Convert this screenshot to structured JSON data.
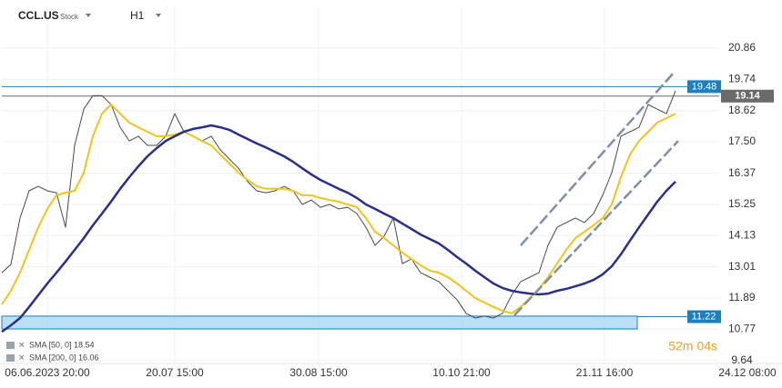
{
  "header": {
    "symbol": "CCL.US",
    "kind": "Stock",
    "interval": "H1"
  },
  "chart_data": {
    "type": "line",
    "x": [
      0,
      1,
      2,
      3,
      4,
      5,
      6,
      7,
      8,
      9,
      10,
      11,
      12,
      13,
      14,
      15,
      16,
      17,
      18,
      19,
      20,
      21,
      22,
      23,
      24,
      25,
      26,
      27,
      28,
      29,
      30,
      31,
      32,
      33,
      34,
      35,
      36,
      37,
      38,
      39,
      40,
      41,
      42,
      43,
      44,
      45,
      46,
      47,
      48,
      49,
      50,
      51,
      52,
      53,
      54,
      55,
      56,
      57,
      58,
      59,
      60,
      61,
      62,
      63,
      64,
      65,
      66,
      67,
      68,
      69,
      70,
      71,
      72,
      73,
      74
    ],
    "xlim": [
      0,
      84
    ],
    "xticks": [
      {
        "value": 5.0,
        "label": "06.06.2023 20:00"
      },
      {
        "value": 19.0,
        "label": "20.07 15:00"
      },
      {
        "value": 34.8,
        "label": "30.08 15:00"
      },
      {
        "value": 50.5,
        "label": "10.10 21:00"
      },
      {
        "value": 66.2,
        "label": "21.11 16:00"
      },
      {
        "value": 81.9,
        "label": "24.12 08:00"
      }
    ],
    "ylim": [
      9.54,
      22.33
    ],
    "yticks": [
      {
        "value": 20.86,
        "label": "20.86"
      },
      {
        "value": 19.74,
        "label": "19.74"
      },
      {
        "value": 18.62,
        "label": "18.62"
      },
      {
        "value": 17.5,
        "label": "17.50"
      },
      {
        "value": 16.37,
        "label": "16.37"
      },
      {
        "value": 15.25,
        "label": "15.25"
      },
      {
        "value": 14.13,
        "label": "14.13"
      },
      {
        "value": 13.01,
        "label": "13.01"
      },
      {
        "value": 11.89,
        "label": "11.89"
      },
      {
        "value": 10.77,
        "label": "10.77"
      },
      {
        "value": 9.64,
        "label": "9.64"
      }
    ],
    "grid": true,
    "series": [
      {
        "color": "#4a4a4a",
        "values": [
          12.8,
          13.1,
          14.76,
          15.74,
          15.9,
          15.74,
          15.67,
          14.43,
          17.37,
          18.67,
          19.16,
          19.16,
          18.84,
          18.02,
          17.53,
          17.7,
          17.37,
          17.37,
          17.7,
          18.51,
          17.86,
          17.7,
          17.53,
          17.7,
          17.21,
          16.88,
          16.55,
          16.07,
          15.74,
          15.67,
          15.74,
          15.9,
          15.74,
          15.25,
          15.41,
          15.15,
          15.25,
          15.09,
          15.15,
          14.92,
          14.43,
          13.78,
          14.11,
          14.76,
          13.13,
          13.29,
          12.8,
          12.64,
          12.48,
          12.15,
          11.83,
          11.34,
          11.17,
          11.24,
          11.17,
          11.34,
          11.99,
          12.48,
          12.64,
          12.8,
          13.78,
          14.43,
          14.6,
          14.76,
          14.6,
          14.92,
          15.58,
          16.39,
          17.7,
          17.86,
          18.02,
          18.84,
          18.67,
          18.51,
          19.33
        ]
      },
      {
        "name": "SMA [50, 0] 18.54",
        "color": "#f0c419",
        "values": [
          11.66,
          12.15,
          12.8,
          13.62,
          14.43,
          15.09,
          15.58,
          15.67,
          15.74,
          16.39,
          17.7,
          18.51,
          18.84,
          18.51,
          18.19,
          18.02,
          17.86,
          17.7,
          17.7,
          17.76,
          17.86,
          17.7,
          17.53,
          17.37,
          17.04,
          16.72,
          16.39,
          16.13,
          15.9,
          15.81,
          15.81,
          15.81,
          15.74,
          15.58,
          15.58,
          15.48,
          15.41,
          15.35,
          15.25,
          15.15,
          14.76,
          14.27,
          14.04,
          13.78,
          13.52,
          13.29,
          13.07,
          12.87,
          12.8,
          12.64,
          12.41,
          12.15,
          11.89,
          11.73,
          11.57,
          11.43,
          11.34,
          11.57,
          11.89,
          12.22,
          12.64,
          13.13,
          13.62,
          14.04,
          14.27,
          14.5,
          14.76,
          15.25,
          16.23,
          17.04,
          17.53,
          17.86,
          18.19,
          18.35,
          18.51
        ]
      },
      {
        "name": "SMA [200, 0] 16.06",
        "color": "#2b2f8c",
        "values": [
          10.68,
          10.91,
          11.17,
          11.57,
          11.99,
          12.41,
          12.8,
          13.2,
          13.62,
          14.04,
          14.5,
          14.92,
          15.35,
          15.81,
          16.23,
          16.62,
          16.98,
          17.27,
          17.53,
          17.7,
          17.86,
          17.96,
          18.02,
          18.09,
          18.02,
          17.93,
          17.76,
          17.6,
          17.44,
          17.3,
          17.14,
          16.98,
          16.78,
          16.55,
          16.33,
          16.13,
          15.97,
          15.81,
          15.67,
          15.48,
          15.25,
          15.09,
          14.92,
          14.76,
          14.56,
          14.37,
          14.17,
          14.01,
          13.85,
          13.62,
          13.36,
          13.13,
          12.87,
          12.64,
          12.41,
          12.25,
          12.15,
          12.09,
          12.05,
          12.02,
          12.05,
          12.15,
          12.22,
          12.31,
          12.41,
          12.54,
          12.74,
          13.03,
          13.46,
          13.95,
          14.43,
          14.89,
          15.35,
          15.74,
          16.07
        ]
      }
    ],
    "trendlines": [
      {
        "color": "#7f8fa6",
        "x": [
          57.0,
          73.8
        ],
        "y": [
          13.78,
          19.98
        ]
      },
      {
        "color": "#7f8fa6",
        "x": [
          56.3,
          74.3
        ],
        "y": [
          11.27,
          17.53
        ]
      }
    ],
    "levels": [
      {
        "value": 19.48,
        "color": "#1b7fc0"
      },
      {
        "value": 19.14,
        "color": "#6a6a6a"
      }
    ],
    "zone": {
      "value": 11.22,
      "low": 10.78,
      "high": 11.24,
      "x": [
        0,
        69.8
      ],
      "color": "#1b7fc0"
    },
    "countdown": "52m 04s"
  }
}
